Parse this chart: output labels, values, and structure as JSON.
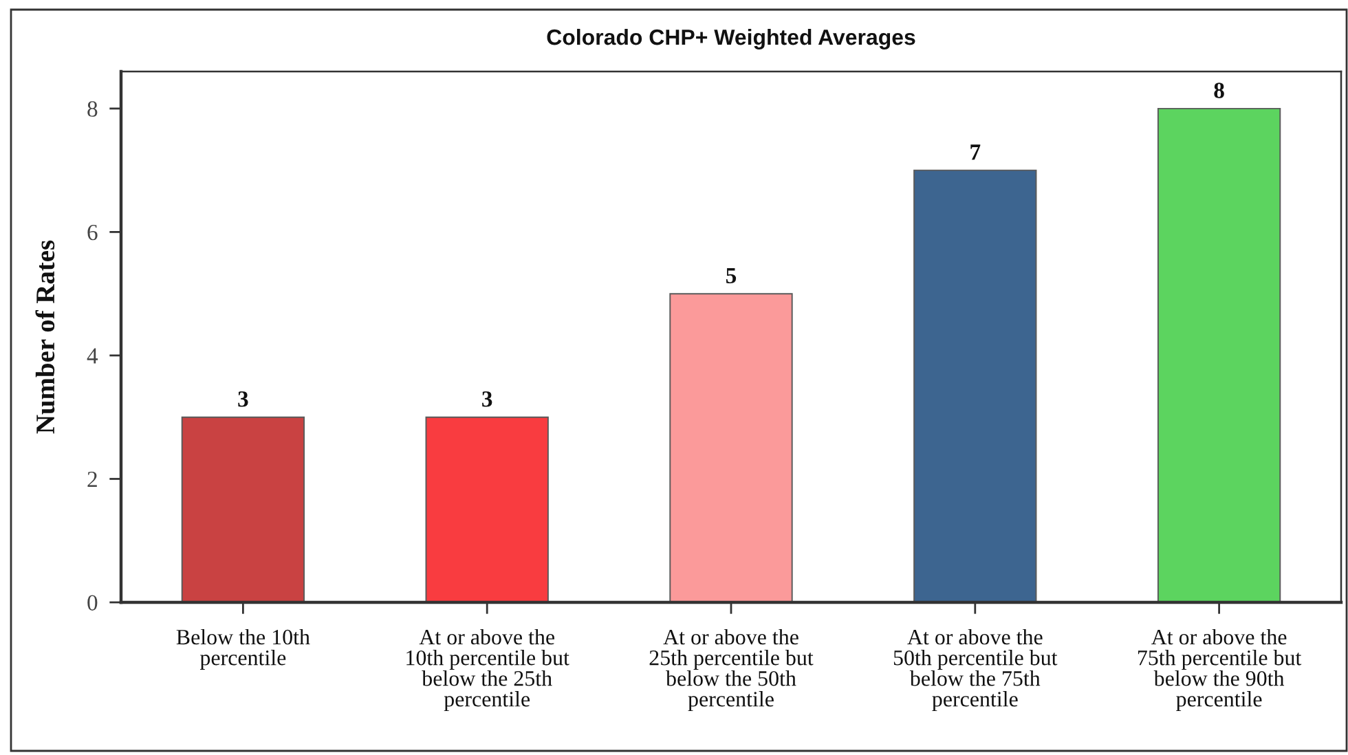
{
  "chart_data": {
    "type": "bar",
    "title": "Colorado CHP+ Weighted Averages",
    "ylabel": "Number of Rates",
    "categories": [
      "Below the 10th\npercentile",
      "At or above the\n10th percentile but\nbelow the 25th\npercentile",
      "At or above the\n25th percentile but\nbelow the 50th\npercentile",
      "At or above the\n50th percentile but\nbelow the 75th\npercentile",
      "At or above the\n75th percentile but\nbelow the 90th\npercentile"
    ],
    "values": [
      3,
      3,
      5,
      7,
      8
    ],
    "colors": [
      "#c94242",
      "#f93c40",
      "#fb9a9a",
      "#3d6590",
      "#5cd45f"
    ],
    "ylim": [
      0,
      8.6
    ],
    "yticks": [
      0,
      2,
      4,
      6,
      8
    ],
    "data_labels": true,
    "grid": false,
    "legend": false
  }
}
